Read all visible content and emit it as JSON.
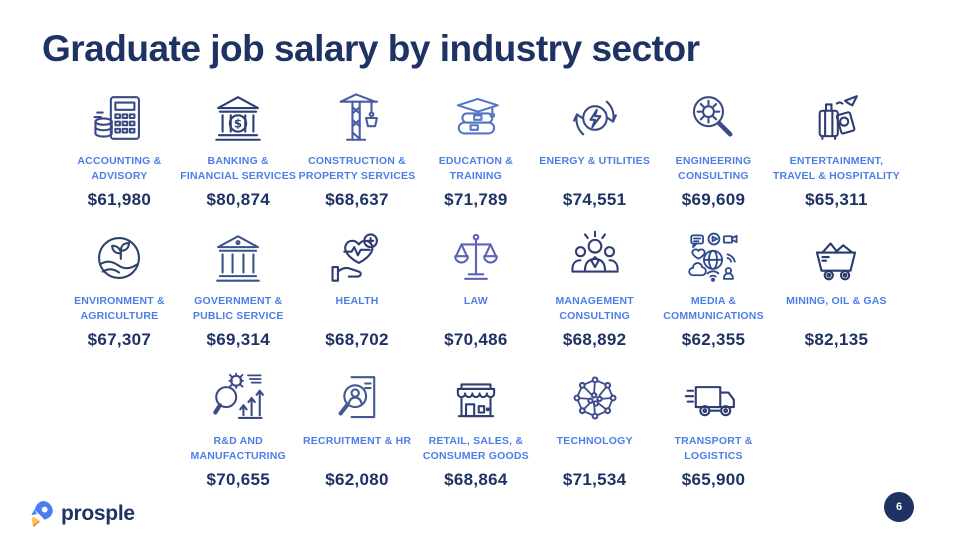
{
  "slide": {
    "title": "Graduate job salary by industry sector",
    "page_number": "6",
    "brand": "prosple"
  },
  "colors": {
    "background": "#ffffff",
    "title_navy": "#1e3264",
    "label_blue": "#4d7ee6",
    "value_navy": "#1e3264",
    "icon_default": "#36437b",
    "page_badge": "#1e3264",
    "logo_rocket_blue": "#4a7df0",
    "logo_flame_yellow": "#ffc24b",
    "logo_flame_orange": "#f2654a"
  },
  "sectors": [
    {
      "label": "ACCOUNTING &\nADVISORY",
      "value": "$61,980",
      "icon": "calculator-coins-icon",
      "icon_color": "#3b4a84"
    },
    {
      "label": "BANKING &\nFINANCIAL SERVICES",
      "value": "$80,874",
      "icon": "bank-icon",
      "icon_color": "#2f3d72"
    },
    {
      "label": "CONSTRUCTION &\nPROPERTY SERVICES",
      "value": "$68,637",
      "icon": "crane-icon",
      "icon_color": "#4a5ca0"
    },
    {
      "label": "EDUCATION &\nTRAINING",
      "value": "$71,789",
      "icon": "graduation-books-icon",
      "icon_color": "#5577c4"
    },
    {
      "label": "ENERGY & UTILITIES",
      "value": "$74,551",
      "icon": "energy-recycle-bolt-icon",
      "icon_color": "#3b4a84"
    },
    {
      "label": "ENGINEERING\nCONSULTING",
      "value": "$69,609",
      "icon": "gear-magnifier-icon",
      "icon_color": "#3b4a84"
    },
    {
      "label": "ENTERTAINMENT,\nTRAVEL & HOSPITALITY",
      "value": "$65,311",
      "icon": "travel-suitcase-icon",
      "icon_color": "#2f3d72"
    },
    {
      "label": "ENVIRONMENT &\nAGRICULTURE",
      "value": "$67,307",
      "icon": "field-sprout-icon",
      "icon_color": "#2f4368"
    },
    {
      "label": "GOVERNMENT &\nPUBLIC SERVICE",
      "value": "$69,314",
      "icon": "government-building-icon",
      "icon_color": "#3b5288"
    },
    {
      "label": "HEALTH",
      "value": "$68,702",
      "icon": "hand-heart-icon",
      "icon_color": "#2f3d72"
    },
    {
      "label": "LAW",
      "value": "$70,486",
      "icon": "scales-icon",
      "icon_color": "#5c63b8"
    },
    {
      "label": "MANAGEMENT\nCONSULTING",
      "value": "$68,892",
      "icon": "team-people-icon",
      "icon_color": "#2f3d72"
    },
    {
      "label": "MEDIA &\nCOMMUNICATIONS",
      "value": "$62,355",
      "icon": "globe-media-icon",
      "icon_color": "#2f4a8c"
    },
    {
      "label": "MINING, OIL & GAS",
      "value": "$82,135",
      "icon": "mining-cart-icon",
      "icon_color": "#2a3a6e"
    },
    {
      "label": "R&D AND\nMANUFACTURING",
      "value": "$70,655",
      "icon": "research-growth-icon",
      "icon_color": "#3b4a84"
    },
    {
      "label": "RECRUITMENT & HR",
      "value": "$62,080",
      "icon": "magnifier-person-icon",
      "icon_color": "#44598f"
    },
    {
      "label": "RETAIL, SALES, &\nCONSUMER GOODS",
      "value": "$68,864",
      "icon": "storefront-icon",
      "icon_color": "#2f3d72"
    },
    {
      "label": "TECHNOLOGY",
      "value": "$71,534",
      "icon": "network-mesh-icon",
      "icon_color": "#3f4e8a"
    },
    {
      "label": "TRANSPORT &\nLOGISTICS",
      "value": "$65,900",
      "icon": "truck-icon",
      "icon_color": "#2f3d72"
    }
  ],
  "chart_data": {
    "type": "table",
    "title": "Graduate job salary by industry sector",
    "categories": [
      "Accounting & Advisory",
      "Banking & Financial Services",
      "Construction & Property Services",
      "Education & Training",
      "Energy & Utilities",
      "Engineering Consulting",
      "Entertainment, Travel & Hospitality",
      "Environment & Agriculture",
      "Government & Public Service",
      "Health",
      "Law",
      "Management Consulting",
      "Media & Communications",
      "Mining, Oil & Gas",
      "R&D and Manufacturing",
      "Recruitment & HR",
      "Retail, Sales, & Consumer Goods",
      "Technology",
      "Transport & Logistics"
    ],
    "values": [
      61980,
      80874,
      68637,
      71789,
      74551,
      69609,
      65311,
      67307,
      69314,
      68702,
      70486,
      68892,
      62355,
      82135,
      70655,
      62080,
      68864,
      71534,
      65900
    ],
    "value_prefix": "$",
    "layout": "pictogram grid, 7 + 7 + 5 cells"
  }
}
